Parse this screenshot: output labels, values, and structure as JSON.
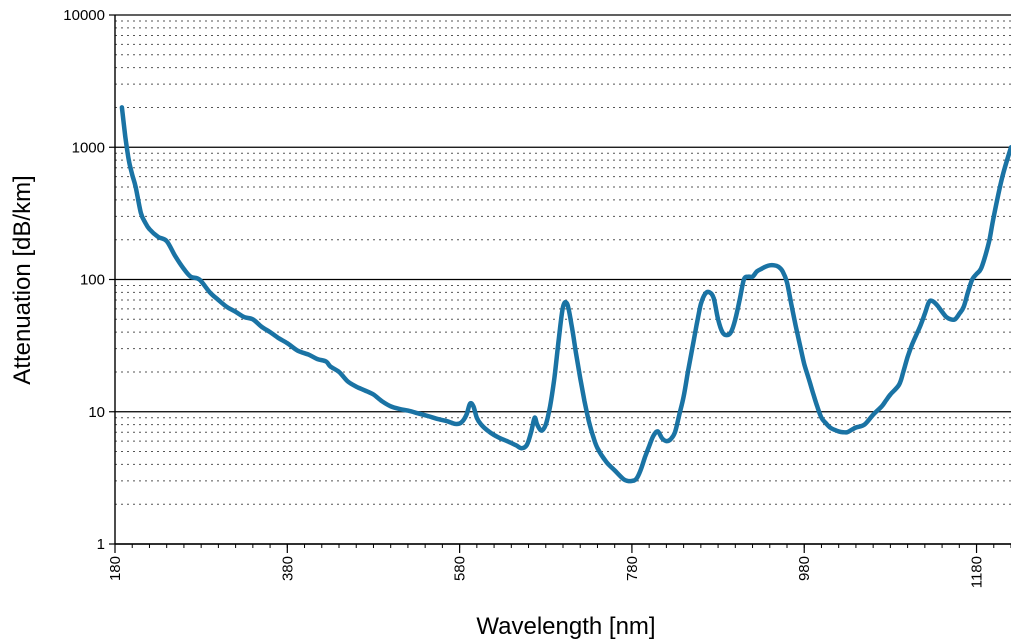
{
  "chart_data": {
    "type": "line",
    "title": "",
    "xlabel": "Wavelength [nm]",
    "ylabel": "Attenuation [dB/km]",
    "xlim": [
      180,
      1220
    ],
    "ylim": [
      1,
      10000
    ],
    "y_scale": "log",
    "x_ticks": [
      180,
      380,
      580,
      780,
      980,
      1180
    ],
    "x_tick_labels": [
      "180",
      "380",
      "580",
      "780",
      "980",
      "1180"
    ],
    "y_ticks": [
      1,
      10,
      100,
      1000,
      10000
    ],
    "y_tick_labels": [
      "1",
      "10",
      "100",
      "1000",
      "10000"
    ],
    "grid": "major solid, minor dotted",
    "legend": "none",
    "line_color": "#1a73a4",
    "series": [
      {
        "x": [
          188,
          192,
          196,
          200,
          204,
          210,
          215,
          220,
          230,
          240,
          250,
          260,
          268,
          278,
          290,
          300,
          310,
          320,
          330,
          340,
          350,
          360,
          370,
          380,
          392,
          405,
          415,
          425,
          430,
          440,
          450,
          460,
          470,
          480,
          490,
          500,
          510,
          520,
          530,
          545,
          555,
          565,
          575,
          582,
          588,
          592,
          596,
          600,
          605,
          615,
          625,
          635,
          645,
          652,
          658,
          663,
          667,
          670,
          675,
          680,
          685,
          690,
          695,
          700,
          705,
          710,
          715,
          720,
          725,
          730,
          735,
          740,
          750,
          760,
          770,
          775,
          780,
          785,
          790,
          795,
          800,
          805,
          810,
          815,
          820,
          825,
          830,
          835,
          840,
          845,
          850,
          855,
          860,
          865,
          870,
          875,
          880,
          885,
          890,
          895,
          900,
          905,
          910,
          915,
          920,
          925,
          930,
          935,
          940,
          945,
          950,
          955,
          960,
          965,
          970,
          975,
          980,
          985,
          990,
          995,
          1000,
          1005,
          1010,
          1015,
          1020,
          1025,
          1030,
          1035,
          1040,
          1050,
          1060,
          1070,
          1075,
          1080,
          1090,
          1095,
          1100,
          1105,
          1110,
          1115,
          1120,
          1125,
          1130,
          1135,
          1140,
          1145,
          1150,
          1155,
          1160,
          1165,
          1170,
          1175,
          1180,
          1185,
          1190,
          1195,
          1200,
          1210,
          1220
        ],
        "y": [
          2000,
          1200,
          800,
          620,
          500,
          320,
          270,
          240,
          210,
          195,
          150,
          120,
          105,
          100,
          80,
          70,
          62,
          57,
          52,
          50,
          44,
          40,
          36,
          33,
          29,
          27,
          25,
          24,
          22,
          20,
          17,
          15.5,
          14.5,
          13.5,
          12,
          11,
          10.5,
          10.2,
          9.8,
          9.2,
          8.8,
          8.5,
          8.1,
          8.3,
          9.5,
          11.5,
          11,
          9,
          8,
          7,
          6.4,
          6,
          5.6,
          5.3,
          5.6,
          7,
          9,
          8,
          7.2,
          8,
          11,
          18,
          35,
          62,
          65,
          45,
          28,
          18,
          12,
          8.5,
          6.5,
          5.3,
          4.2,
          3.6,
          3.1,
          3.0,
          3.0,
          3.1,
          3.6,
          4.5,
          5.5,
          6.6,
          7.1,
          6.3,
          6.0,
          6.2,
          7.0,
          9.5,
          13,
          20,
          30,
          45,
          65,
          78,
          80,
          72,
          50,
          40,
          38,
          40,
          50,
          70,
          100,
          105,
          105,
          115,
          120,
          125,
          128,
          128,
          125,
          115,
          95,
          65,
          45,
          32,
          23,
          18,
          14,
          11,
          9,
          8.2,
          7.6,
          7.3,
          7.1,
          7.0,
          7.0,
          7.3,
          7.6,
          8.0,
          9.5,
          11,
          12.2,
          13.5,
          16,
          20,
          26,
          32,
          38,
          45,
          55,
          68,
          68,
          63,
          57,
          52,
          50,
          50,
          55,
          62,
          80,
          100,
          110,
          120,
          150,
          200,
          300,
          600,
          1000
        ]
      }
    ]
  }
}
